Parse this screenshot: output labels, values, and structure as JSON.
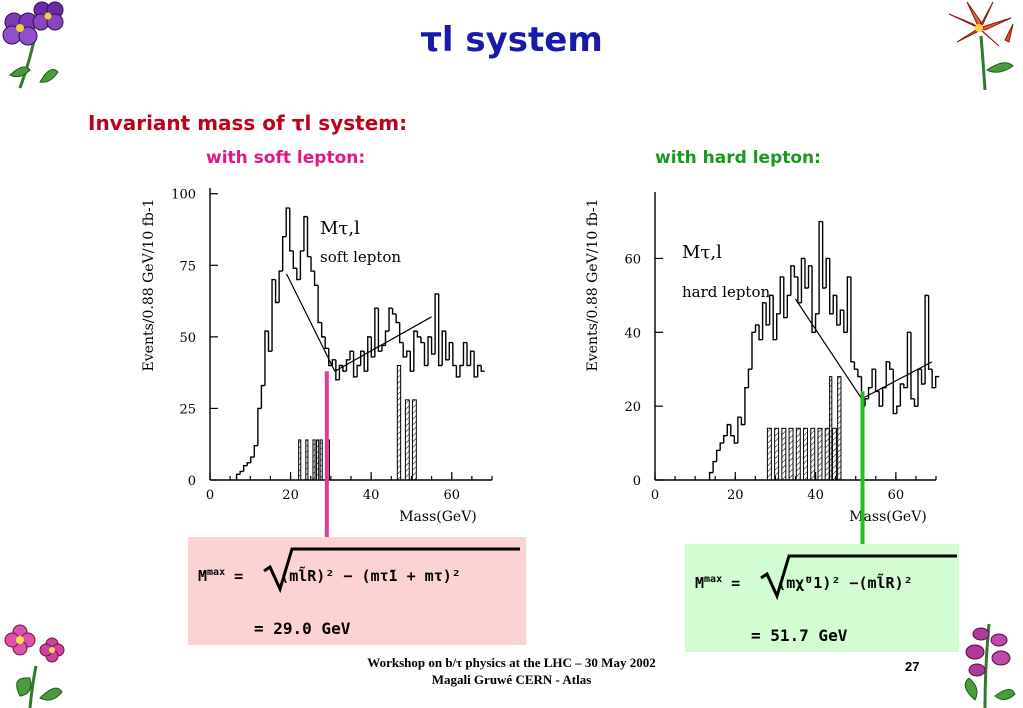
{
  "title": "τl system",
  "section_heading": "Invariant mass of τl system:",
  "panels": {
    "soft": {
      "caption": "with soft lepton:",
      "plot_label_line1": "Mτ,l",
      "plot_label_line2": "soft lepton",
      "formula": {
        "lhs": "M",
        "lhs_sup": "max",
        "eq": "=",
        "expr": "(ml̃R)² − (mτ̃1 + mτ)²",
        "result": "= 29.0 GeV"
      },
      "marker_color": "#e8359a"
    },
    "hard": {
      "caption": "with hard lepton:",
      "plot_label_line1": "Mτ,l",
      "plot_label_line2": "hard lepton",
      "formula": {
        "lhs": "M",
        "lhs_sup": "max",
        "eq": "=",
        "expr": "(mχ̃⁰1)² −(ml̃R)²",
        "result": "= 51.7 GeV"
      },
      "marker_color": "#20c020"
    }
  },
  "footer": {
    "line1": "Workshop on b/τ physics at the LHC – 30 May 2002",
    "line2": "Magali Gruwé CERN - Atlas"
  },
  "page_number": "27",
  "decorations": [
    "violet-flower-icon",
    "lily-flower-icon",
    "pink-flower-icon",
    "foxglove-flower-icon"
  ],
  "chart_data": [
    {
      "type": "bar",
      "name": "soft lepton",
      "xlabel": "Mass(GeV)",
      "ylabel": "Events/0.88 GeV/10 fb-1",
      "xlim": [
        0,
        70
      ],
      "ylim": [
        0,
        102
      ],
      "xticks": [
        0,
        20,
        40,
        60
      ],
      "yticks": [
        0,
        25,
        50,
        75,
        100
      ],
      "bin_width": 0.88,
      "hist_start": 6.6,
      "values": [
        2,
        3,
        5,
        6,
        8,
        12,
        25,
        33,
        52,
        45,
        70,
        62,
        73,
        85,
        95,
        80,
        74,
        70,
        80,
        92,
        78,
        73,
        68,
        55,
        50,
        46,
        40,
        42,
        35,
        40,
        38,
        42,
        45,
        36,
        40,
        45,
        38,
        50,
        43,
        60,
        45,
        47,
        52,
        60,
        58,
        55,
        48,
        43,
        45,
        38,
        52,
        50,
        48,
        40,
        50,
        44,
        65,
        40,
        52,
        42,
        48,
        40,
        36,
        40,
        48,
        40,
        45,
        36,
        40,
        38
      ],
      "background": [
        {
          "x0": 22,
          "x1": 30,
          "type": "hatched",
          "levels": [
            14,
            0,
            14,
            0,
            14,
            14,
            14,
            0,
            14
          ]
        },
        {
          "x0": 46.5,
          "x1": 48,
          "value": 40
        },
        {
          "x0": 48.5,
          "x1": 52,
          "value": 28
        }
      ],
      "fit_lines": [
        [
          [
            19,
            72
          ],
          [
            31,
            38
          ]
        ],
        [
          [
            31,
            38
          ],
          [
            55,
            57
          ]
        ]
      ],
      "endpoint_marker": 29.0
    },
    {
      "type": "bar",
      "name": "hard lepton",
      "xlabel": "Mass(GeV)",
      "ylabel": "Events/0.88 GeV/10 fb-1",
      "xlim": [
        0,
        70
      ],
      "ylim": [
        0,
        78
      ],
      "xticks": [
        0,
        20,
        40,
        60
      ],
      "yticks": [
        0,
        20,
        40,
        60
      ],
      "bin_width": 0.88,
      "hist_start": 13.6,
      "values": [
        2,
        5,
        8,
        10,
        12,
        15,
        12,
        10,
        17,
        15,
        25,
        30,
        40,
        42,
        38,
        48,
        42,
        50,
        38,
        45,
        55,
        44,
        50,
        58,
        55,
        48,
        60,
        52,
        58,
        40,
        45,
        70,
        52,
        60,
        45,
        50,
        42,
        46,
        40,
        55,
        32,
        30,
        28,
        20,
        22,
        25,
        30,
        24,
        20,
        25,
        32,
        30,
        18,
        20,
        26,
        25,
        40,
        22,
        20,
        30,
        26,
        50,
        30,
        25,
        28
      ],
      "background": [
        {
          "x0": 28,
          "x1": 46,
          "value": 14
        },
        {
          "x0": 43.5,
          "x1": 44.5,
          "value": 28
        },
        {
          "x0": 45.5,
          "x1": 47,
          "value": 28
        }
      ],
      "fit_lines": [
        [
          [
            35,
            49
          ],
          [
            51.5,
            22
          ]
        ],
        [
          [
            51.5,
            22
          ],
          [
            69,
            32
          ]
        ]
      ],
      "endpoint_marker": 51.7
    }
  ]
}
